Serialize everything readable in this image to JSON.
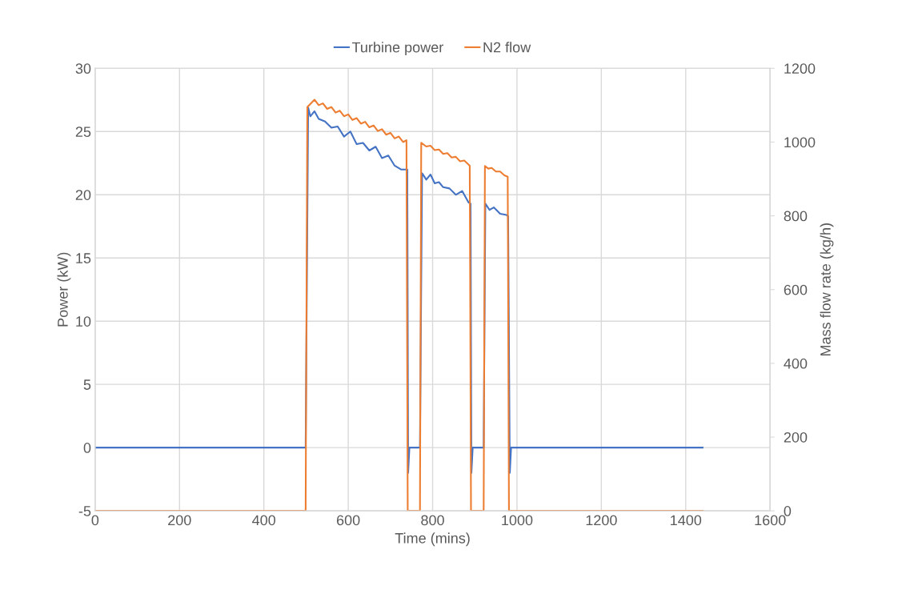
{
  "chart_data": {
    "type": "line",
    "xlabel": "Time (mins)",
    "ylabel": "Power (kW)",
    "y2label": "Mass flow rate (kg/h)",
    "xlim": [
      0,
      1600
    ],
    "xticks": [
      0,
      200,
      400,
      600,
      800,
      1000,
      1200,
      1400,
      1600
    ],
    "ylim": [
      -5,
      30
    ],
    "yticks": [
      -5,
      0,
      5,
      10,
      15,
      20,
      25,
      30
    ],
    "y2lim": [
      0,
      1200
    ],
    "y2ticks": [
      0,
      200,
      400,
      600,
      800,
      1000,
      1200
    ],
    "grid": true,
    "legend": "top",
    "marker": "none",
    "line_style": "solid",
    "series": [
      {
        "name": "Turbine power",
        "color": "#4472c4",
        "x": [
          0,
          499,
          505,
          510,
          520,
          530,
          545,
          560,
          575,
          590,
          605,
          620,
          635,
          650,
          665,
          680,
          695,
          710,
          725,
          740,
          742,
          745,
          770,
          775,
          785,
          795,
          805,
          815,
          825,
          840,
          855,
          870,
          885,
          890,
          892,
          895,
          921,
          925,
          935,
          945,
          960,
          975,
          979,
          983,
          986,
          1440
        ],
        "values": [
          0,
          0,
          26.9,
          26.2,
          26.6,
          26.0,
          25.8,
          25.3,
          25.4,
          24.6,
          25.0,
          24.0,
          24.1,
          23.5,
          23.8,
          22.9,
          23.1,
          22.3,
          22.0,
          22.0,
          -2,
          0,
          0,
          21.7,
          21.2,
          21.6,
          20.9,
          21.0,
          20.6,
          20.5,
          20.0,
          20.3,
          19.4,
          19.3,
          -2,
          0,
          0,
          19.3,
          18.8,
          19.0,
          18.5,
          18.4,
          18.3,
          -2,
          0,
          0
        ]
      },
      {
        "name": "N2 flow",
        "color": "#ed7d31",
        "axis": "y2",
        "x": [
          0,
          499,
          503,
          520,
          530,
          540,
          550,
          560,
          570,
          580,
          590,
          600,
          610,
          620,
          630,
          640,
          650,
          660,
          670,
          680,
          690,
          700,
          710,
          720,
          730,
          738,
          741,
          770,
          773,
          785,
          795,
          805,
          815,
          825,
          835,
          845,
          855,
          865,
          875,
          888,
          891,
          921,
          924,
          932,
          940,
          950,
          960,
          970,
          978,
          981,
          1440
        ],
        "values": [
          0,
          0,
          1095,
          1115,
          1100,
          1105,
          1090,
          1095,
          1080,
          1085,
          1070,
          1075,
          1060,
          1065,
          1050,
          1055,
          1040,
          1045,
          1030,
          1035,
          1020,
          1025,
          1010,
          1015,
          1000,
          1005,
          0,
          0,
          998,
          988,
          990,
          978,
          980,
          968,
          970,
          958,
          960,
          948,
          950,
          936,
          0,
          0,
          935,
          928,
          930,
          920,
          920,
          910,
          906,
          0,
          0
        ]
      }
    ]
  }
}
